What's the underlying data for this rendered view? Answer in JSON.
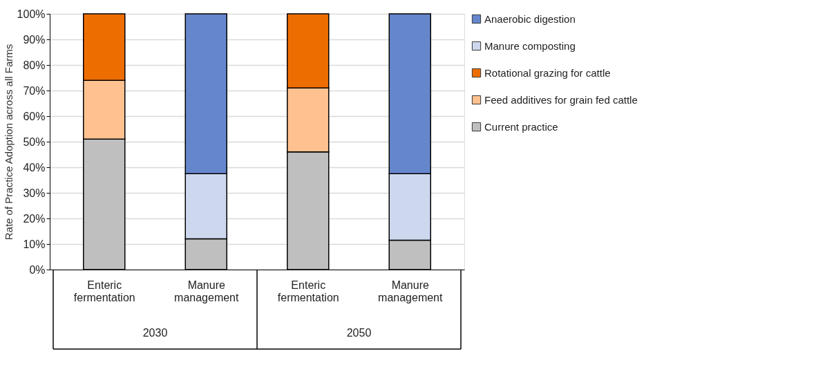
{
  "chart_data": {
    "type": "bar",
    "stacked": true,
    "ylabel": "Rate of Practice Adoption across all Farms",
    "categories": [
      "Enteric fermentation",
      "Manure management",
      "Enteric fermentation",
      "Manure management"
    ],
    "annotations": [
      "2030",
      "2050"
    ],
    "series": [
      {
        "name": "Current practice",
        "color": "#bfbfbf",
        "values": [
          51,
          12,
          46,
          11.5
        ]
      },
      {
        "name": "Feed additives for grain fed cattle",
        "color": "#ffc18f",
        "values": [
          23,
          null,
          25,
          null
        ]
      },
      {
        "name": "Rotational grazing for cattle",
        "color": "#ee6d00",
        "values": [
          26,
          null,
          29,
          null
        ]
      },
      {
        "name": "Manure composting",
        "color": "#cdd7ee",
        "values": [
          null,
          25.5,
          null,
          26
        ]
      },
      {
        "name": "Anaerobic digestion",
        "color": "#6686cc",
        "values": [
          null,
          62.5,
          null,
          62.5
        ]
      }
    ],
    "ylim": [
      0,
      100
    ],
    "yticks": [
      {
        "value": 0,
        "label": "0%"
      },
      {
        "value": 10,
        "label": "10%"
      },
      {
        "value": 20,
        "label": "20%"
      },
      {
        "value": 30,
        "label": "30%"
      },
      {
        "value": 40,
        "label": "40%"
      },
      {
        "value": 50,
        "label": "50%"
      },
      {
        "value": 60,
        "label": "60%"
      },
      {
        "value": 70,
        "label": "70%"
      },
      {
        "value": 80,
        "label": "80%"
      },
      {
        "value": 90,
        "label": "90%"
      },
      {
        "value": 100,
        "label": "100%"
      }
    ],
    "grid": "y",
    "legend": "right"
  }
}
